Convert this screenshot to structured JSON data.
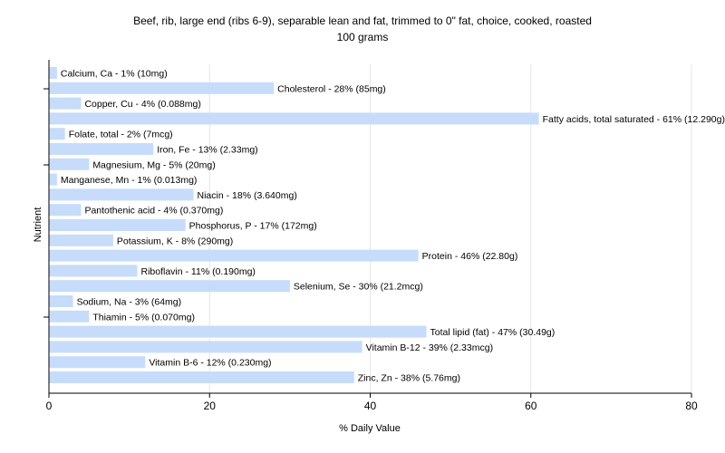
{
  "chart_data": {
    "type": "bar",
    "orientation": "horizontal",
    "title": "Beef, rib, large end (ribs 6-9), separable lean and fat, trimmed to 0\" fat, choice, cooked, roasted",
    "subtitle": "100 grams",
    "xlabel": "% Daily Value",
    "ylabel": "Nutrient",
    "xlim": [
      0,
      80
    ],
    "xticks": [
      0,
      20,
      40,
      60,
      80
    ],
    "grid": true,
    "bar_color": "#c6dcfa",
    "categories": [
      "Calcium, Ca",
      "Cholesterol",
      "Copper, Cu",
      "Fatty acids, total saturated",
      "Folate, total",
      "Iron, Fe",
      "Magnesium, Mg",
      "Manganese, Mn",
      "Niacin",
      "Pantothenic acid",
      "Phosphorus, P",
      "Potassium, K",
      "Protein",
      "Riboflavin",
      "Selenium, Se",
      "Sodium, Na",
      "Thiamin",
      "Total lipid (fat)",
      "Vitamin B-12",
      "Vitamin B-6",
      "Zinc, Zn"
    ],
    "values": [
      1,
      28,
      4,
      61,
      2,
      13,
      5,
      1,
      18,
      4,
      17,
      8,
      46,
      11,
      30,
      3,
      5,
      47,
      39,
      12,
      38
    ],
    "labels": [
      "Calcium, Ca - 1% (10mg)",
      "Cholesterol - 28% (85mg)",
      "Copper, Cu - 4% (0.088mg)",
      "Fatty acids, total saturated - 61% (12.290g)",
      "Folate, total - 2% (7mcg)",
      "Iron, Fe - 13% (2.33mg)",
      "Magnesium, Mg - 5% (20mg)",
      "Manganese, Mn - 1% (0.013mg)",
      "Niacin - 18% (3.640mg)",
      "Pantothenic acid - 4% (0.370mg)",
      "Phosphorus, P - 17% (172mg)",
      "Potassium, K - 8% (290mg)",
      "Protein - 46% (22.80g)",
      "Riboflavin - 11% (0.190mg)",
      "Selenium, Se - 30% (21.2mcg)",
      "Sodium, Na - 3% (64mg)",
      "Thiamin - 5% (0.070mg)",
      "Total lipid (fat) - 47% (30.49g)",
      "Vitamin B-12 - 39% (2.33mcg)",
      "Vitamin B-6 - 12% (0.230mg)",
      "Zinc, Zn - 38% (5.76mg)"
    ]
  }
}
